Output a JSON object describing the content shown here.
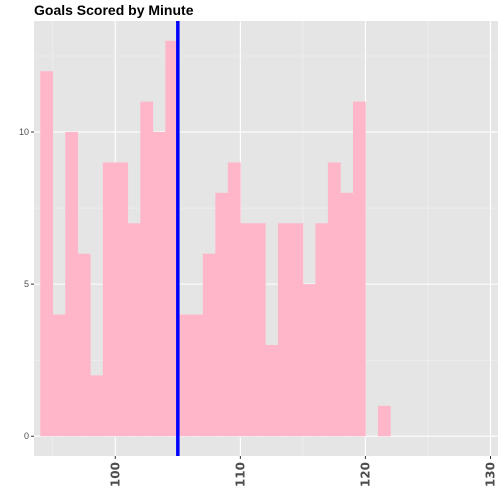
{
  "chart_data": {
    "type": "bar",
    "title": "Goals Scored by Minute",
    "xlabel": "",
    "ylabel": "",
    "bin_starts": [
      94,
      95,
      96,
      97,
      98,
      99,
      100,
      101,
      102,
      103,
      104,
      105,
      106,
      107,
      108,
      109,
      110,
      111,
      112,
      113,
      114,
      115,
      116,
      117,
      118,
      119,
      120,
      121,
      122
    ],
    "bin_width": 1,
    "values": [
      12,
      4,
      10,
      6,
      2,
      9,
      9,
      7,
      11,
      10,
      13,
      4,
      4,
      6,
      8,
      9,
      7,
      7,
      3,
      7,
      7,
      5,
      7,
      9,
      8,
      11,
      0,
      1,
      0
    ],
    "vline_x": 105,
    "xlim": [
      93.5,
      130.6
    ],
    "ylim": [
      -0.65,
      13.65
    ],
    "x_ticks": [
      100,
      110,
      120,
      130
    ],
    "x_tick_labels": [
      "100",
      "110",
      "120",
      "130"
    ],
    "y_ticks": [
      0,
      5,
      10
    ],
    "y_tick_labels": [
      "0",
      "5",
      "10"
    ],
    "grid": true,
    "colors": {
      "bar_fill": "#FFB6C8",
      "vline": "#0000FF",
      "panel_bg": "#E5E5E5",
      "grid_major": "#FFFFFF",
      "grid_minor": "#F2F2F2",
      "tick_text": "#4D4D4D",
      "tick_mark": "#333333"
    }
  }
}
